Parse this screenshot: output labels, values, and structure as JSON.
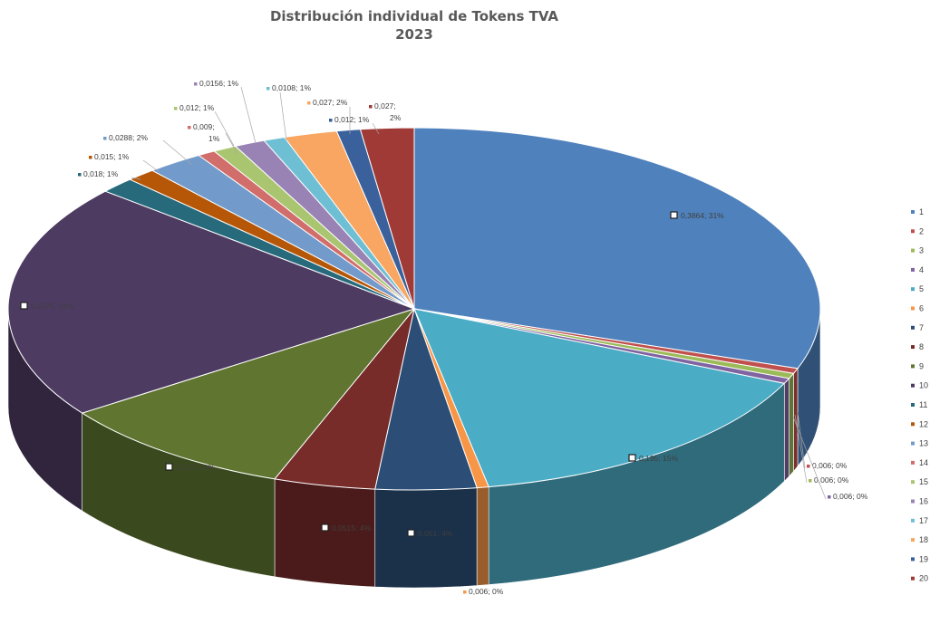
{
  "chart_data": {
    "type": "pie",
    "title": "Distribución individual de Tokens TVA",
    "subtitle": "2023",
    "legend_position": "right",
    "categories": [
      "1",
      "2",
      "3",
      "4",
      "5",
      "6",
      "7",
      "8",
      "9",
      "10",
      "11",
      "12",
      "13",
      "14",
      "15",
      "16",
      "17",
      "18",
      "19",
      "20"
    ],
    "values": [
      0.3864,
      0.006,
      0.006,
      0.006,
      0.195,
      0.006,
      0.051,
      0.0515,
      0.123,
      0.2675,
      0.018,
      0.015,
      0.0288,
      0.009,
      0.012,
      0.0156,
      0.0108,
      0.027,
      0.012,
      0.027
    ],
    "colors": [
      "#4f81bd",
      "#c0504d",
      "#9bbb59",
      "#8064a2",
      "#4bacc6",
      "#f79646",
      "#2c4d75",
      "#772c2a",
      "#5f7530",
      "#4d3b62",
      "#276a7c",
      "#b65708",
      "#729aca",
      "#d16d6a",
      "#a9c570",
      "#9983b5",
      "#6fbfd4",
      "#f8a662",
      "#3a619b",
      "#a03a37"
    ],
    "data_labels": [
      {
        "text": "0,3864; 31%"
      },
      {
        "text": "0,006; 0%"
      },
      {
        "text": "0,006; 0%"
      },
      {
        "text": "0,006; 0%"
      },
      {
        "text": "0,195; 15%"
      },
      {
        "text": "0,006; 0%"
      },
      {
        "text": "0,051; 4%"
      },
      {
        "text": "0,0515; 4%"
      },
      {
        "text": "0,123; 10%"
      },
      {
        "text": "0,2675; 21%"
      },
      {
        "text": "0,018; 1%"
      },
      {
        "text": "0,015; 1%"
      },
      {
        "text": "0,0288; 2%"
      },
      {
        "text": "0,009;",
        "text2": "1%"
      },
      {
        "text": "0,012; 1%"
      },
      {
        "text": "0,0156; 1%"
      },
      {
        "text": "0,0108; 1%"
      },
      {
        "text": "0,027; 2%"
      },
      {
        "text": "0,012; 1%"
      },
      {
        "text": "0,027;",
        "text2": "2%"
      }
    ]
  }
}
